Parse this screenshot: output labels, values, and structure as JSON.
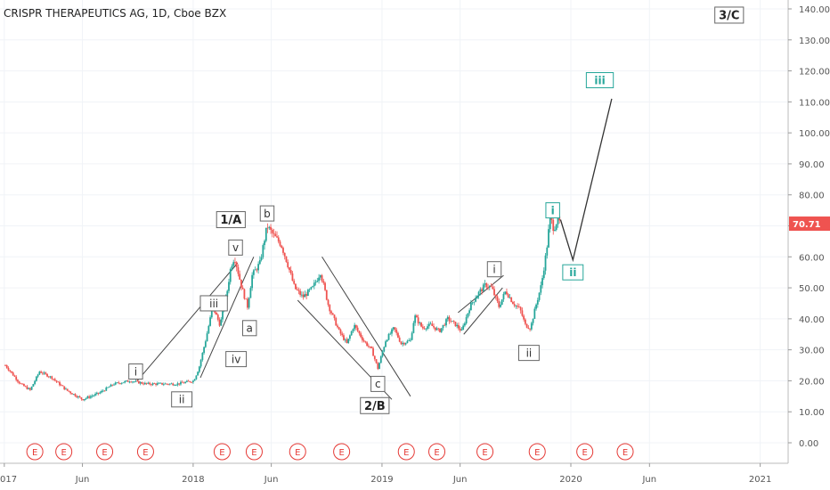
{
  "chart_data": {
    "type": "line",
    "title": "CRISPR THERAPEUTICS AG, 1D, Cboe BZX",
    "ylim": [
      -5,
      145
    ],
    "y_ticks": [
      "140.00",
      "130.00",
      "120.00",
      "110.00",
      "100.00",
      "90.00",
      "80.00",
      "70.00",
      "60.00",
      "50.00",
      "40.00",
      "30.00",
      "20.00",
      "10.00",
      "0.00"
    ],
    "x_ticks": [
      "017",
      "Jun",
      "2018",
      "Jun",
      "2019",
      "Jun",
      "2020",
      "Jun",
      "2021"
    ],
    "last_price": "70.71",
    "colors": {
      "up": "#26a69a",
      "down": "#ef5350",
      "earnings": "#e53935",
      "price_label_bg": "#ef5350",
      "line": "#333333",
      "green_label": "#26a69a"
    },
    "series": [
      {
        "values": [
          {
            "x": "2017-01-03",
            "y": 25
          },
          {
            "x": "2017-02-01",
            "y": 19
          },
          {
            "x": "2017-02-20",
            "y": 17
          },
          {
            "x": "2017-03-10",
            "y": 23
          },
          {
            "x": "2017-04-03",
            "y": 21
          },
          {
            "x": "2017-05-01",
            "y": 17
          },
          {
            "x": "2017-06-01",
            "y": 14
          },
          {
            "x": "2017-07-03",
            "y": 16
          },
          {
            "x": "2017-08-01",
            "y": 19
          },
          {
            "x": "2017-09-01",
            "y": 20
          },
          {
            "x": "2017-10-02",
            "y": 19
          },
          {
            "x": "2017-11-01",
            "y": 19
          },
          {
            "x": "2017-12-01",
            "y": 19
          },
          {
            "x": "2018-01-02",
            "y": 20
          },
          {
            "x": "2018-01-12",
            "y": 24
          },
          {
            "x": "2018-01-25",
            "y": 33
          },
          {
            "x": "2018-02-08",
            "y": 44
          },
          {
            "x": "2018-02-22",
            "y": 38
          },
          {
            "x": "2018-03-07",
            "y": 48
          },
          {
            "x": "2018-03-15",
            "y": 57
          },
          {
            "x": "2018-03-22",
            "y": 60
          },
          {
            "x": "2018-04-05",
            "y": 50
          },
          {
            "x": "2018-04-16",
            "y": 44
          },
          {
            "x": "2018-04-25",
            "y": 54
          },
          {
            "x": "2018-05-10",
            "y": 58
          },
          {
            "x": "2018-05-24",
            "y": 70
          },
          {
            "x": "2018-06-05",
            "y": 67
          },
          {
            "x": "2018-06-20",
            "y": 64
          },
          {
            "x": "2018-07-02",
            "y": 58
          },
          {
            "x": "2018-07-16",
            "y": 50
          },
          {
            "x": "2018-08-01",
            "y": 47
          },
          {
            "x": "2018-08-20",
            "y": 50
          },
          {
            "x": "2018-09-04",
            "y": 55
          },
          {
            "x": "2018-09-20",
            "y": 44
          },
          {
            "x": "2018-10-10",
            "y": 36
          },
          {
            "x": "2018-10-25",
            "y": 32
          },
          {
            "x": "2018-11-08",
            "y": 38
          },
          {
            "x": "2018-11-26",
            "y": 33
          },
          {
            "x": "2018-12-12",
            "y": 30
          },
          {
            "x": "2018-12-24",
            "y": 24
          },
          {
            "x": "2019-01-08",
            "y": 33
          },
          {
            "x": "2019-01-24",
            "y": 37
          },
          {
            "x": "2019-02-07",
            "y": 32
          },
          {
            "x": "2019-02-25",
            "y": 33
          },
          {
            "x": "2019-03-05",
            "y": 41
          },
          {
            "x": "2019-03-20",
            "y": 37
          },
          {
            "x": "2019-04-05",
            "y": 38
          },
          {
            "x": "2019-04-22",
            "y": 36
          },
          {
            "x": "2019-05-08",
            "y": 40
          },
          {
            "x": "2019-05-24",
            "y": 38
          },
          {
            "x": "2019-06-04",
            "y": 36
          },
          {
            "x": "2019-06-20",
            "y": 44
          },
          {
            "x": "2019-07-05",
            "y": 48
          },
          {
            "x": "2019-07-20",
            "y": 51
          },
          {
            "x": "2019-08-01",
            "y": 50
          },
          {
            "x": "2019-08-15",
            "y": 44
          },
          {
            "x": "2019-08-28",
            "y": 49
          },
          {
            "x": "2019-09-12",
            "y": 45
          },
          {
            "x": "2019-09-25",
            "y": 43
          },
          {
            "x": "2019-10-05",
            "y": 38
          },
          {
            "x": "2019-10-15",
            "y": 37
          },
          {
            "x": "2019-10-25",
            "y": 44
          },
          {
            "x": "2019-11-05",
            "y": 51
          },
          {
            "x": "2019-11-15",
            "y": 62
          },
          {
            "x": "2019-11-22",
            "y": 73
          },
          {
            "x": "2019-11-29",
            "y": 69
          },
          {
            "x": "2019-12-06",
            "y": 72
          },
          {
            "x": "2019-12-12",
            "y": 70.71
          }
        ]
      }
    ],
    "projection": [
      {
        "x": "2019-12-12",
        "y": 72
      },
      {
        "x": "2020-01-05",
        "y": 59
      },
      {
        "x": "2020-03-20",
        "y": 111
      }
    ],
    "trendlines": [
      {
        "from": {
          "x": "2017-09-15",
          "y": 20
        },
        "to": {
          "x": "2018-03-28",
          "y": 58
        }
      },
      {
        "from": {
          "x": "2018-01-15",
          "y": 21
        },
        "to": {
          "x": "2018-04-28",
          "y": 60
        }
      },
      {
        "from": {
          "x": "2018-07-22",
          "y": 46
        },
        "to": {
          "x": "2019-01-20",
          "y": 14
        }
      },
      {
        "from": {
          "x": "2018-09-07",
          "y": 60
        },
        "to": {
          "x": "2019-02-25",
          "y": 15
        }
      },
      {
        "from": {
          "x": "2019-05-28",
          "y": 42
        },
        "to": {
          "x": "2019-08-24",
          "y": 54
        }
      },
      {
        "from": {
          "x": "2019-06-08",
          "y": 35
        },
        "to": {
          "x": "2019-08-22",
          "y": 50
        }
      }
    ],
    "annotations": [
      {
        "text": "i",
        "x": "2017-09-12",
        "y": 23,
        "style": "normal",
        "boxed": true
      },
      {
        "text": "ii",
        "x": "2017-12-10",
        "y": 14,
        "style": "normal",
        "boxed": true
      },
      {
        "text": "iii",
        "x": "2018-02-10",
        "y": 45,
        "style": "normal",
        "boxed": true
      },
      {
        "text": "iv",
        "x": "2018-03-25",
        "y": 27,
        "style": "normal",
        "boxed": true
      },
      {
        "text": "v",
        "x": "2018-03-24",
        "y": 63,
        "style": "normal",
        "boxed": true
      },
      {
        "text": "a",
        "x": "2018-04-20",
        "y": 37,
        "style": "normal",
        "boxed": true
      },
      {
        "text": "1/A",
        "x": "2018-03-15",
        "y": 72,
        "style": "bold",
        "boxed": true
      },
      {
        "text": "b",
        "x": "2018-05-24",
        "y": 74,
        "style": "normal",
        "boxed": true
      },
      {
        "text": "c",
        "x": "2018-12-24",
        "y": 19,
        "style": "normal",
        "boxed": true
      },
      {
        "text": "2/B",
        "x": "2018-12-18",
        "y": 12,
        "style": "bold",
        "boxed": true
      },
      {
        "text": "i",
        "x": "2019-08-06",
        "y": 56,
        "style": "normal",
        "boxed": true
      },
      {
        "text": "ii",
        "x": "2019-10-12",
        "y": 29,
        "style": "normal",
        "boxed": true
      },
      {
        "text": "i",
        "x": "2019-11-27",
        "y": 75,
        "style": "green",
        "boxed": true
      },
      {
        "text": "ii",
        "x": "2020-01-05",
        "y": 55,
        "style": "green",
        "boxed": true
      },
      {
        "text": "iii",
        "x": "2020-02-26",
        "y": 117,
        "style": "green",
        "boxed": true
      },
      {
        "text": "3/C",
        "x": "2020-11-02",
        "y": 138,
        "style": "bold",
        "boxed": true
      }
    ],
    "earnings_markers": {
      "label": "E",
      "dates": [
        "2017-03-01",
        "2017-04-26",
        "2017-07-14",
        "2017-10-01",
        "2018-02-26",
        "2018-04-29",
        "2018-07-22",
        "2018-10-15",
        "2019-02-17",
        "2019-04-17",
        "2019-07-19",
        "2019-10-28",
        "2020-01-28",
        "2020-04-15"
      ]
    }
  }
}
